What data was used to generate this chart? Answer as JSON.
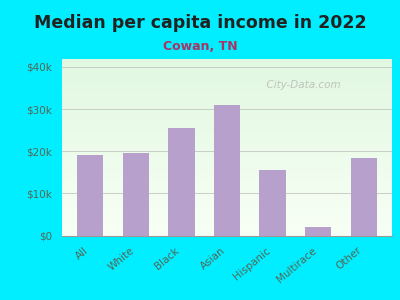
{
  "title": "Median per capita income in 2022",
  "subtitle": "Cowan, TN",
  "categories": [
    "All",
    "White",
    "Black",
    "Asian",
    "Hispanic",
    "Multirace",
    "Other"
  ],
  "values": [
    19000,
    19500,
    25500,
    31000,
    15500,
    2000,
    18500
  ],
  "bar_color": "#b8a0cc",
  "background_outer": "#00eeff",
  "title_color": "#222222",
  "subtitle_color": "#aa3366",
  "tick_label_color": "#556655",
  "ylabel_ticks": [
    "$0",
    "$10k",
    "$20k",
    "$30k",
    "$40k"
  ],
  "ylabel_values": [
    0,
    10000,
    20000,
    30000,
    40000
  ],
  "ylim": [
    0,
    42000
  ],
  "watermark": "  City-Data.com"
}
